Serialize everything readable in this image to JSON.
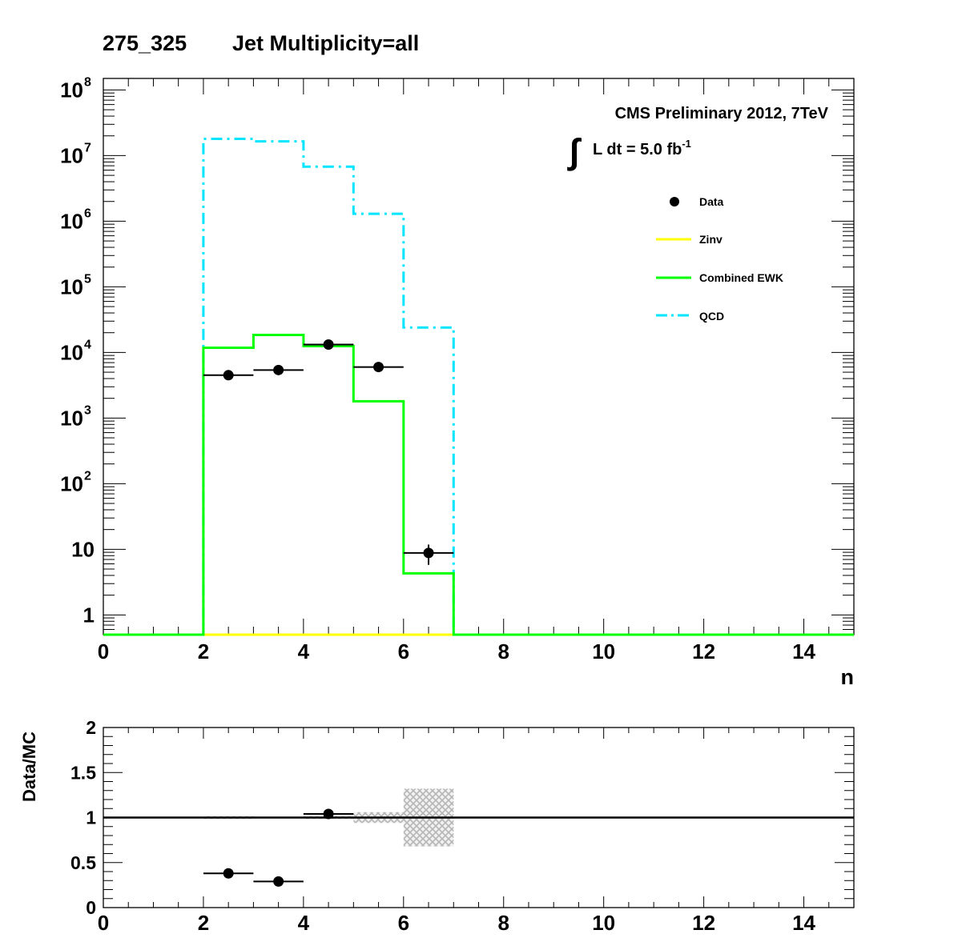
{
  "header": {
    "title_left": "275_325",
    "title_right": "Jet Multiplicity=all"
  },
  "chart_data": [
    {
      "type": "histogram",
      "yscale": "log",
      "xlim": [
        0,
        15
      ],
      "ylim": [
        0.5,
        150000000
      ],
      "xlabel": "n",
      "ylabel": "",
      "x_ticks": [
        0,
        2,
        4,
        6,
        8,
        10,
        12,
        14
      ],
      "x_tick_labels": [
        "0",
        "2",
        "4",
        "6",
        "8",
        "10",
        "12",
        "14"
      ],
      "y_ticks": [
        1,
        10,
        100,
        1000,
        10000,
        100000,
        1000000,
        10000000,
        100000000
      ],
      "y_tick_labels": [
        {
          "base": "1",
          "exp": ""
        },
        {
          "base": "10",
          "exp": ""
        },
        {
          "base": "10",
          "exp": "2"
        },
        {
          "base": "10",
          "exp": "3"
        },
        {
          "base": "10",
          "exp": "4"
        },
        {
          "base": "10",
          "exp": "5"
        },
        {
          "base": "10",
          "exp": "6"
        },
        {
          "base": "10",
          "exp": "7"
        },
        {
          "base": "10",
          "exp": "8"
        }
      ],
      "annotation": {
        "line1": "CMS Preliminary 2012, 7TeV",
        "integral": "∫",
        "line2": "L dt = 5.0 fb",
        "line2_exp": "-1"
      },
      "legend": {
        "placement": "top-right",
        "entries": [
          {
            "label": "Data",
            "style": "marker"
          },
          {
            "label": "Zinv",
            "style": "line",
            "color": "#ffff00"
          },
          {
            "label": "Combined EWK",
            "style": "line",
            "color": "#00ff00"
          },
          {
            "label": "QCD",
            "style": "dashdot",
            "color": "#00e5ff"
          }
        ]
      },
      "series": [
        {
          "name": "QCD",
          "color": "#00e5ff",
          "style": "dashdot",
          "bins": [
            {
              "lo": 0,
              "hi": 2,
              "y": 0
            },
            {
              "lo": 2,
              "hi": 3,
              "y": 18000000
            },
            {
              "lo": 3,
              "hi": 4,
              "y": 16500000
            },
            {
              "lo": 4,
              "hi": 5,
              "y": 6800000
            },
            {
              "lo": 5,
              "hi": 6,
              "y": 1300000
            },
            {
              "lo": 6,
              "hi": 7,
              "y": 24000
            },
            {
              "lo": 7,
              "hi": 15,
              "y": 0
            }
          ]
        },
        {
          "name": "Zinv",
          "color": "#ffff00",
          "style": "solid",
          "bins": [
            {
              "lo": 0,
              "hi": 15,
              "y": 0
            }
          ]
        },
        {
          "name": "Combined EWK",
          "color": "#00ff00",
          "style": "solid",
          "bins": [
            {
              "lo": 0,
              "hi": 2,
              "y": 0
            },
            {
              "lo": 2,
              "hi": 3,
              "y": 11800
            },
            {
              "lo": 3,
              "hi": 4,
              "y": 18500
            },
            {
              "lo": 4,
              "hi": 5,
              "y": 12500
            },
            {
              "lo": 5,
              "hi": 6,
              "y": 1800
            },
            {
              "lo": 6,
              "hi": 7,
              "y": 4.3
            },
            {
              "lo": 7,
              "hi": 15,
              "y": 0
            }
          ]
        },
        {
          "name": "Data",
          "style": "points",
          "points": [
            {
              "x": 2.5,
              "xerr": 0.5,
              "y": 4500,
              "yerr": 67
            },
            {
              "x": 3.5,
              "xerr": 0.5,
              "y": 5400,
              "yerr": 73
            },
            {
              "x": 4.5,
              "xerr": 0.5,
              "y": 13200,
              "yerr": 115
            },
            {
              "x": 5.5,
              "xerr": 0.5,
              "y": 6000,
              "yerr": 77
            },
            {
              "x": 6.5,
              "xerr": 0.5,
              "y": 8.8,
              "yerr": 3
            }
          ]
        }
      ]
    },
    {
      "type": "ratio",
      "xlim": [
        0,
        15
      ],
      "ylim": [
        0,
        2
      ],
      "xlabel": "",
      "ylabel": "Data/MC",
      "x_ticks": [
        0,
        2,
        4,
        6,
        8,
        10,
        12,
        14
      ],
      "x_tick_labels": [
        "0",
        "2",
        "4",
        "6",
        "8",
        "10",
        "12",
        "14"
      ],
      "y_ticks": [
        0,
        0.5,
        1,
        1.5,
        2
      ],
      "y_tick_labels": [
        "0",
        "0.5",
        "1",
        "1.5",
        "2"
      ],
      "reference_line": 1,
      "uncertainty_band": [
        {
          "lo": 2,
          "hi": 3,
          "low": 0.985,
          "high": 1.015
        },
        {
          "lo": 3,
          "hi": 4,
          "low": 0.99,
          "high": 1.01
        },
        {
          "lo": 4,
          "hi": 5,
          "low": 0.985,
          "high": 1.015
        },
        {
          "lo": 5,
          "hi": 6,
          "low": 0.94,
          "high": 1.06
        },
        {
          "lo": 6,
          "hi": 7,
          "low": 0.68,
          "high": 1.32
        }
      ],
      "points": [
        {
          "x": 2.5,
          "xerr": 0.5,
          "y": 0.38
        },
        {
          "x": 3.5,
          "xerr": 0.5,
          "y": 0.29
        },
        {
          "x": 4.5,
          "xerr": 0.5,
          "y": 1.04
        }
      ]
    }
  ]
}
